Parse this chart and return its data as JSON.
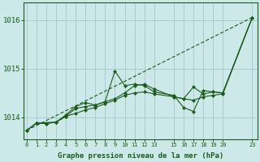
{
  "xlabel": "Graphe pression niveau de la mer (hPa)",
  "bg_color": "#cce8e8",
  "plot_bg_color": "#cce8e8",
  "grid_color": "#aacccc",
  "line_color": "#1a5c1a",
  "marker_color": "#1a5c1a",
  "ylim_min": 1013.55,
  "ylim_max": 1016.35,
  "yticks": [
    1014,
    1015,
    1016
  ],
  "xtick_labels": [
    "0",
    "1",
    "2",
    "3",
    "4",
    "5",
    "6",
    "7",
    "8",
    "9",
    "10",
    "11",
    "12",
    "13",
    "15",
    "16",
    "17",
    "18",
    "19",
    "20",
    "23"
  ],
  "xtick_pos": [
    0,
    1,
    2,
    3,
    4,
    5,
    6,
    7,
    8,
    9,
    10,
    11,
    12,
    13,
    15,
    16,
    17,
    18,
    19,
    20,
    23
  ],
  "xlim_min": -0.3,
  "xlim_max": 23.5,
  "series1": [
    [
      0,
      1013.73
    ],
    [
      1,
      1013.88
    ],
    [
      2,
      1013.87
    ],
    [
      3,
      1013.9
    ],
    [
      4,
      1014.02
    ],
    [
      5,
      1014.08
    ],
    [
      6,
      1014.15
    ],
    [
      7,
      1014.2
    ],
    [
      8,
      1014.28
    ],
    [
      9,
      1014.35
    ],
    [
      10,
      1014.45
    ],
    [
      11,
      1014.5
    ],
    [
      12,
      1014.52
    ],
    [
      13,
      1014.48
    ],
    [
      15,
      1014.42
    ],
    [
      16,
      1014.38
    ],
    [
      17,
      1014.35
    ],
    [
      18,
      1014.42
    ],
    [
      19,
      1014.45
    ],
    [
      20,
      1014.48
    ],
    [
      23,
      1016.05
    ]
  ],
  "series2": [
    [
      0,
      1013.73
    ],
    [
      1,
      1013.88
    ],
    [
      2,
      1013.87
    ],
    [
      3,
      1013.9
    ],
    [
      4,
      1014.02
    ],
    [
      5,
      1014.18
    ],
    [
      6,
      1014.22
    ],
    [
      7,
      1014.25
    ],
    [
      8,
      1014.32
    ],
    [
      9,
      1014.95
    ],
    [
      10,
      1014.65
    ],
    [
      11,
      1014.68
    ],
    [
      12,
      1014.65
    ],
    [
      13,
      1014.52
    ],
    [
      15,
      1014.45
    ],
    [
      16,
      1014.2
    ],
    [
      17,
      1014.12
    ],
    [
      18,
      1014.55
    ],
    [
      19,
      1014.52
    ],
    [
      20,
      1014.5
    ],
    [
      23,
      1016.05
    ]
  ],
  "series3": [
    [
      0,
      1013.73
    ],
    [
      1,
      1013.88
    ],
    [
      3,
      1013.9
    ],
    [
      4,
      1014.05
    ],
    [
      5,
      1014.22
    ],
    [
      6,
      1014.3
    ],
    [
      7,
      1014.25
    ],
    [
      8,
      1014.32
    ],
    [
      9,
      1014.38
    ],
    [
      10,
      1014.5
    ],
    [
      11,
      1014.65
    ],
    [
      12,
      1014.68
    ],
    [
      13,
      1014.58
    ],
    [
      15,
      1014.42
    ],
    [
      16,
      1014.38
    ],
    [
      17,
      1014.62
    ],
    [
      18,
      1014.48
    ],
    [
      19,
      1014.52
    ],
    [
      20,
      1014.5
    ],
    [
      23,
      1016.05
    ]
  ],
  "series4": [
    [
      0,
      1013.73
    ],
    [
      23,
      1016.05
    ]
  ]
}
